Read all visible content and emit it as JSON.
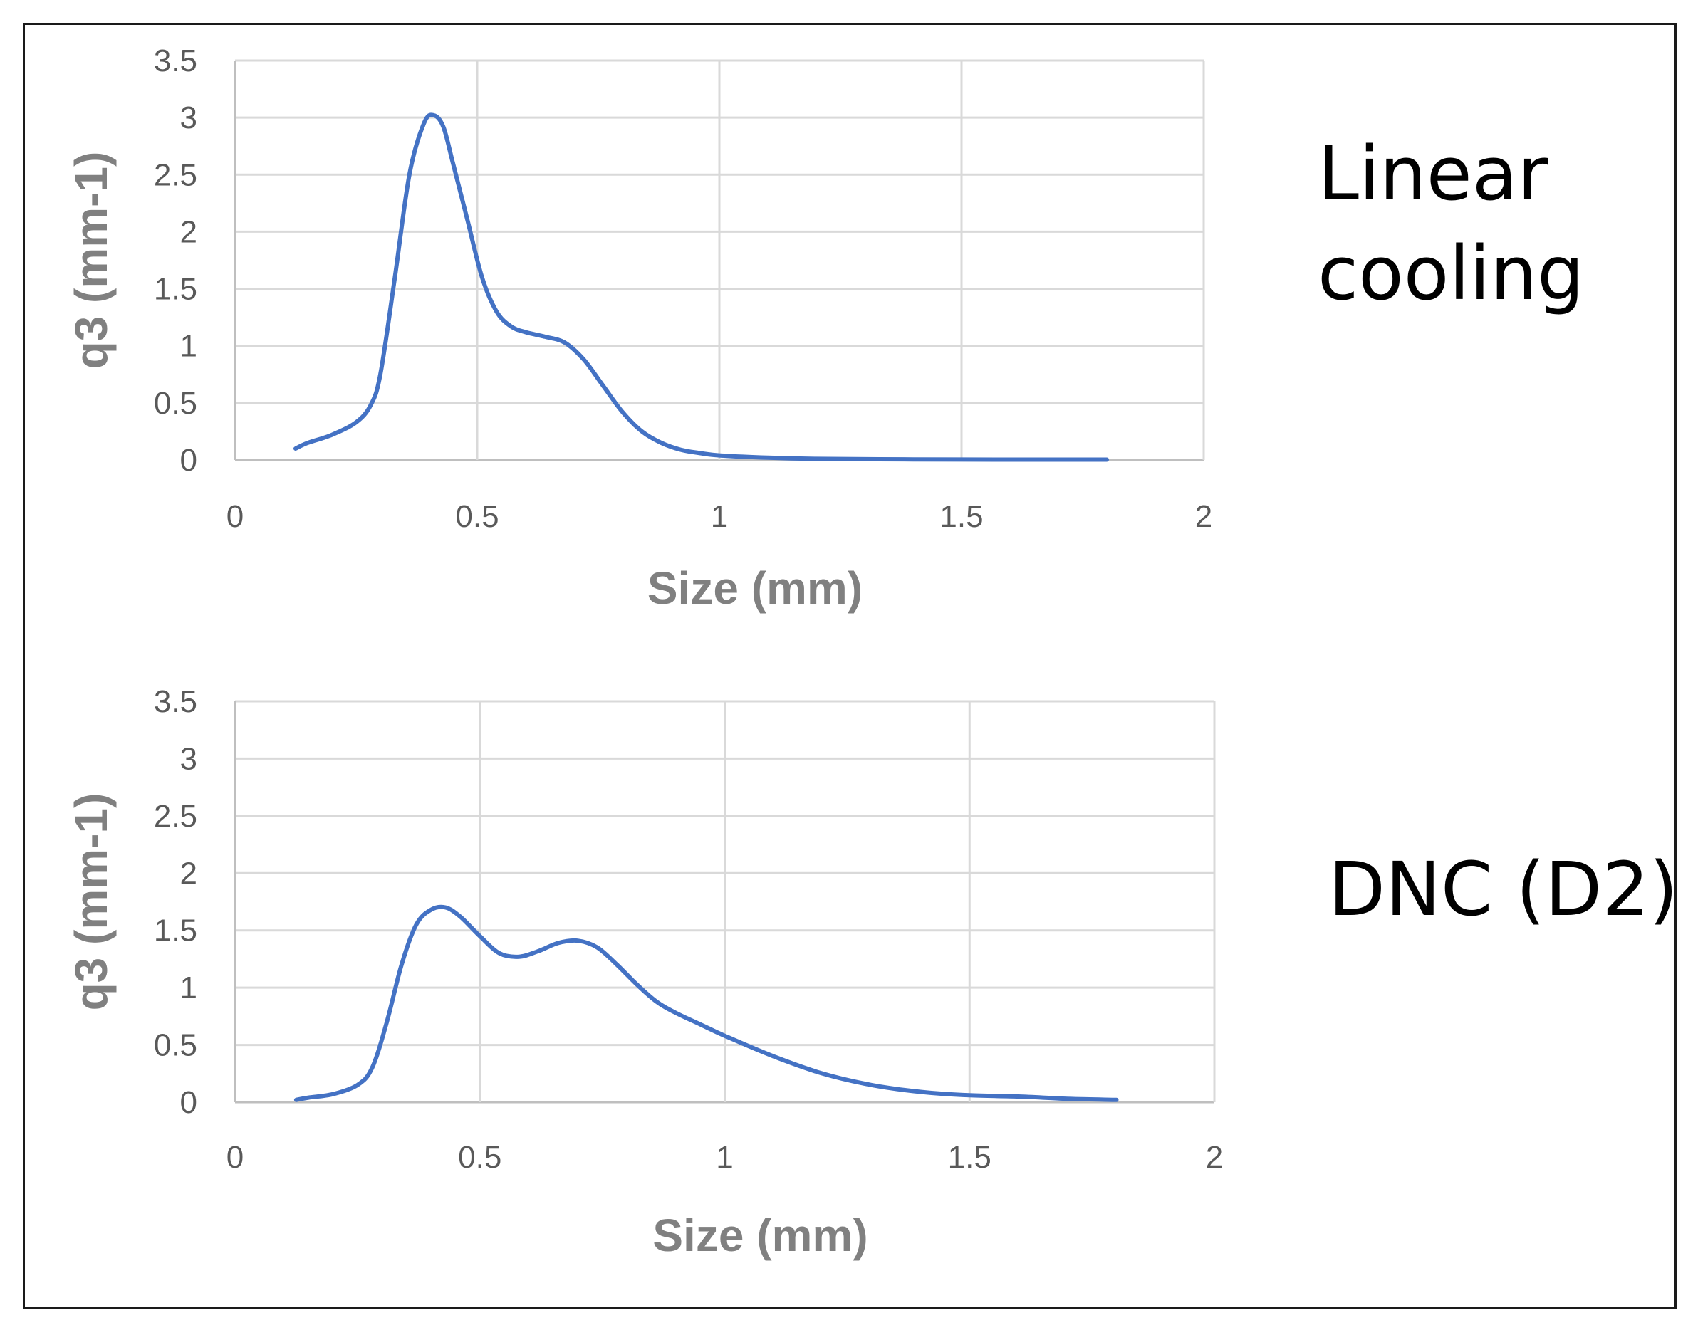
{
  "chart_data": [
    {
      "type": "line",
      "side_label": [
        "Linear",
        "cooling"
      ],
      "xlabel": "Size (mm)",
      "ylabel": "q3 (mm-1)",
      "xlim": [
        0,
        2
      ],
      "ylim": [
        0,
        3.5
      ],
      "x_ticks": [
        "0",
        "0.5",
        "1",
        "1.5",
        "2"
      ],
      "y_ticks": [
        "0",
        "0.5",
        "1",
        "1.5",
        "2",
        "2.5",
        "3",
        "3.5"
      ],
      "grid": true,
      "series_color": "#4472c4",
      "series": [
        {
          "x": [
            0.125,
            0.15,
            0.2,
            0.25,
            0.28,
            0.3,
            0.33,
            0.36,
            0.39,
            0.41,
            0.43,
            0.45,
            0.48,
            0.51,
            0.54,
            0.57,
            0.6,
            0.64,
            0.68,
            0.72,
            0.76,
            0.8,
            0.84,
            0.88,
            0.92,
            0.96,
            1.0,
            1.1,
            1.2,
            1.4,
            1.6,
            1.8
          ],
          "y": [
            0.1,
            0.15,
            0.22,
            0.33,
            0.48,
            0.75,
            1.6,
            2.5,
            2.95,
            3.02,
            2.92,
            2.6,
            2.1,
            1.6,
            1.3,
            1.17,
            1.12,
            1.08,
            1.03,
            0.88,
            0.65,
            0.42,
            0.25,
            0.15,
            0.09,
            0.06,
            0.04,
            0.02,
            0.01,
            0.005,
            0.003,
            0.003
          ]
        }
      ]
    },
    {
      "type": "line",
      "side_label": [
        "DNC (D2)"
      ],
      "xlabel": "Size (mm)",
      "ylabel": "q3 (mm-1)",
      "xlim": [
        0,
        2
      ],
      "ylim": [
        0,
        3.5
      ],
      "x_ticks": [
        "0",
        "0.5",
        "1",
        "1.5",
        "2"
      ],
      "y_ticks": [
        "0",
        "0.5",
        "1",
        "1.5",
        "2",
        "2.5",
        "3",
        "3.5"
      ],
      "grid": true,
      "series_color": "#4472c4",
      "series": [
        {
          "x": [
            0.125,
            0.15,
            0.2,
            0.25,
            0.28,
            0.31,
            0.34,
            0.37,
            0.4,
            0.43,
            0.46,
            0.5,
            0.54,
            0.58,
            0.62,
            0.66,
            0.7,
            0.74,
            0.78,
            0.82,
            0.86,
            0.9,
            0.95,
            1.0,
            1.1,
            1.2,
            1.3,
            1.4,
            1.5,
            1.6,
            1.7,
            1.8
          ],
          "y": [
            0.02,
            0.04,
            0.07,
            0.15,
            0.3,
            0.7,
            1.2,
            1.55,
            1.68,
            1.7,
            1.62,
            1.45,
            1.3,
            1.27,
            1.32,
            1.39,
            1.41,
            1.35,
            1.2,
            1.03,
            0.88,
            0.78,
            0.68,
            0.58,
            0.4,
            0.25,
            0.15,
            0.09,
            0.06,
            0.05,
            0.03,
            0.02
          ]
        }
      ]
    }
  ]
}
